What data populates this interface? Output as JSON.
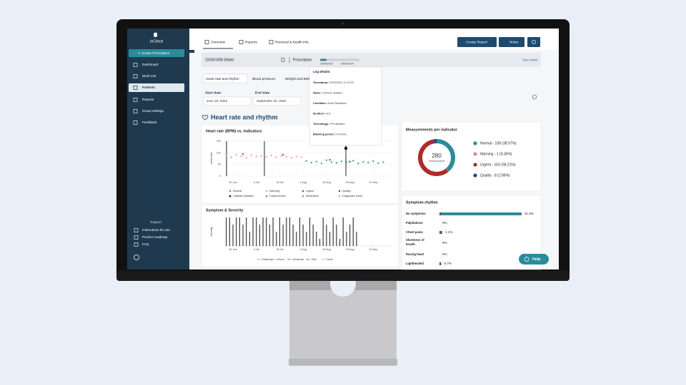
{
  "brand": "InCheck",
  "sidebar": {
    "create_button": "Create Prescription",
    "nav": [
      "Dashboard",
      "Work List",
      "Patients",
      "Reports",
      "Group settings",
      "Feedback"
    ],
    "support_title": "Support",
    "support_links": [
      "Instructions for use",
      "Product roadmap",
      "FAQ"
    ]
  },
  "tabs": [
    "Overview",
    "Reports",
    "Personal & health info"
  ],
  "buttons": [
    "Create Report",
    "Notes"
  ],
  "patient": {
    "id": "23/06/1958 (Male)",
    "prescription_label": "Prescription",
    "prescription_dates": [
      "25/08/2024",
      "05/09/2024"
    ],
    "see_more": "See more"
  },
  "subtabs": [
    "Heart rate and rhythm",
    "Blood pressure",
    "Weight and BMI"
  ],
  "filters": [
    {
      "label": "Start date",
      "value": "June 15, 2022"
    },
    {
      "label": "End date",
      "value": "September 22, 2022"
    }
  ],
  "tooltip": {
    "title": "Log details:",
    "rows": [
      [
        "Timestamp:",
        "20/09/2022 12:20:00"
      ],
      [
        "Name:",
        "Catheter ablation"
      ],
      [
        "Condition:",
        "Atrial Fibrillation"
      ],
      [
        "Iteration:",
        "First"
      ],
      [
        "Technology:",
        "PFA ablation"
      ],
      [
        "Blanking period:",
        "3 months"
      ]
    ]
  },
  "section_title": "Heart rate and rhythm",
  "heart_rate_chart": {
    "type": "scatter",
    "title": "Heart rate (BPM) vs. Indicators",
    "ylabel": "Heart rate",
    "xlim": [
      -6,
      95
    ],
    "ylim": [
      0,
      150
    ],
    "yticks": [
      0,
      50,
      100,
      150
    ],
    "xticks": [
      {
        "value": 0,
        "label": "20 Jun"
      },
      {
        "value": 14,
        "label": "4 Jul"
      },
      {
        "value": 28,
        "label": "18 Jul"
      },
      {
        "value": 42,
        "label": "1 Aug"
      },
      {
        "value": 56,
        "label": "15 Aug"
      },
      {
        "value": 70,
        "label": "29 Aug"
      },
      {
        "value": 84,
        "label": "12 Sep"
      }
    ],
    "grid": true,
    "series": [
      {
        "name": "Normal",
        "color": "#2a8c9a",
        "x": [
          44,
          47,
          50,
          53,
          56,
          59,
          62,
          65,
          68,
          72,
          75,
          78,
          81,
          84,
          87,
          90
        ],
        "values": [
          65,
          58,
          62,
          55,
          68,
          60,
          57,
          63,
          59,
          66,
          54,
          61,
          58,
          64,
          56,
          60
        ]
      },
      {
        "name": "Warning",
        "color": "#e39a9a",
        "x": [
          -4,
          -1,
          2,
          5,
          8,
          11,
          14,
          17,
          20,
          23,
          26,
          29,
          32,
          35,
          38,
          41
        ],
        "values": [
          88,
          80,
          92,
          85,
          78,
          90,
          84,
          86,
          82,
          89,
          80,
          87,
          83,
          79,
          85,
          81
        ]
      },
      {
        "name": "Urgent",
        "color": "#b02a2a",
        "x": [
          6,
          30,
          58
        ],
        "values": [
          95,
          92,
          70
        ]
      },
      {
        "name": "Quality",
        "color": "#1e4a8a",
        "x": [
          70
        ],
        "values": [
          62
        ]
      }
    ],
    "indicators": [
      "Catheter Ablation",
      "Cardioversion",
      "Medication",
      "Diagnostic result"
    ]
  },
  "symptom_chart": {
    "type": "bar",
    "title": "Symptom & Severity",
    "ylabel": "Severity",
    "xlim": [
      -6,
      95
    ],
    "ylim": [
      0,
      4
    ],
    "xticks": [
      {
        "value": 0,
        "label": "20 Jun"
      },
      {
        "value": 14,
        "label": "4 Jul"
      },
      {
        "value": 28,
        "label": "18 Jul"
      },
      {
        "value": 42,
        "label": "1 Aug"
      },
      {
        "value": 56,
        "label": "15 Aug"
      },
      {
        "value": 70,
        "label": "29 Aug"
      },
      {
        "value": 84,
        "label": "12 Sep"
      }
    ],
    "x": [
      -4,
      -2,
      0,
      2,
      4,
      6,
      8,
      10,
      12,
      14,
      16,
      18,
      20,
      22,
      24,
      26,
      28,
      30,
      32,
      34,
      36,
      38,
      40,
      42,
      44,
      46,
      48,
      50,
      52,
      54,
      56,
      58,
      60,
      62,
      64,
      66,
      68,
      70,
      72,
      74
    ],
    "values": [
      4,
      4,
      3,
      4,
      4,
      3,
      4,
      2,
      4,
      4,
      3,
      4,
      4,
      3,
      4,
      2,
      4,
      3,
      4,
      4,
      3,
      2,
      4,
      3,
      2,
      4,
      3,
      2,
      1,
      4,
      3,
      2,
      4,
      3,
      1,
      4,
      2,
      3,
      4,
      2
    ],
    "color": "#3a3a3a",
    "legend": [
      "4 = Disabling",
      "3 = Severe",
      "2b = Moderate",
      "2a = Mild",
      "1 = None"
    ]
  },
  "measurements": {
    "type": "pie",
    "title": "Measurements per indicator",
    "total": "280",
    "total_label": "measurements",
    "series": [
      {
        "name": "Normal - 108 (38.57%)",
        "color": "#2a8c9a",
        "value": 108
      },
      {
        "name": "Warning - 1 (0.36%)",
        "color": "#e08a8a",
        "value": 1
      },
      {
        "name": "Urgent - 163 (58.21%)",
        "color": "#b02a2a",
        "value": 163
      },
      {
        "name": "Quality - 8 (2.86%)",
        "color": "#1e4a8a",
        "value": 8
      }
    ]
  },
  "symptom_rhythm": {
    "type": "bar",
    "title": "Symptom-rhythm",
    "categories": [
      "No symptoms",
      "Palpitations",
      "Chest pains",
      "Shortness of breath",
      "Racing heart",
      "Lightheaded"
    ],
    "values": [
      31.8,
      0,
      1.1,
      0,
      0,
      0.7
    ],
    "value_labels": [
      "31.8%",
      "0%",
      "1.1%",
      "0%",
      "0%",
      "0.7%"
    ]
  },
  "help": "Help"
}
